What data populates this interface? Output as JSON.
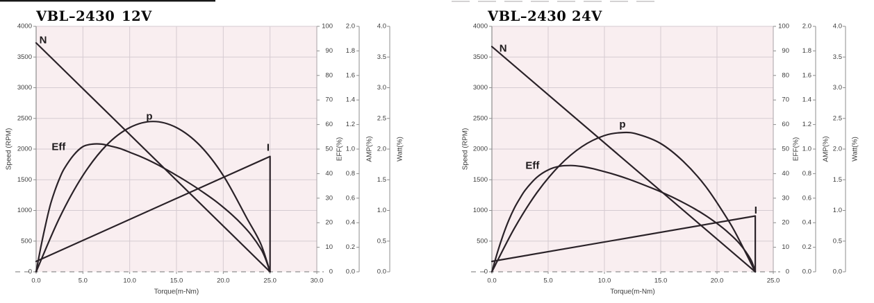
{
  "colors": {
    "plot_bg": "#f9eef0",
    "grid": "#d5cbd1",
    "axis_line": "#8c8c8c",
    "plot_right_border": "#a9a2a6",
    "dashed_zero": "#8f8f8f",
    "curve": "#2a2228",
    "tick_text": "#3c3c3c",
    "title_text": "#0a0a0a",
    "curve_label_text": "#1e1a1c",
    "artifact_black": "#181818",
    "artifact_gray": "#a8a4a6"
  },
  "chart_data": [
    {
      "type": "line",
      "title": {
        "model": "VBL–2430",
        "voltage": "12V"
      },
      "x_axis": {
        "title": "Torque(m-Nm)",
        "min": 0,
        "max": 30,
        "ticks": [
          0,
          5,
          10,
          15,
          20,
          25,
          30
        ],
        "tick_labels": [
          "0.0",
          "5.0",
          "10.0",
          "15.0",
          "20.0",
          "25.0",
          "30.0"
        ]
      },
      "speed_axis": {
        "title": "Speed (RPM)",
        "min": 0,
        "max": 4000,
        "ticks": [
          0,
          500,
          1000,
          1500,
          2000,
          2500,
          3000,
          3500,
          4000
        ],
        "tick_labels": [
          "0",
          "500",
          "1000",
          "1500",
          "2000",
          "2500",
          "3000",
          "3500",
          "4000"
        ]
      },
      "right_axes": [
        {
          "id": "eff",
          "title": "EFF(%)",
          "min": 0,
          "max": 100,
          "ticks": [
            0,
            10,
            20,
            30,
            40,
            50,
            60,
            70,
            80,
            90,
            100
          ],
          "tick_labels": [
            "0",
            "10",
            "20",
            "30",
            "40",
            "50",
            "60",
            "70",
            "80",
            "90",
            "100"
          ]
        },
        {
          "id": "amp",
          "title": "AMP(%)",
          "min": 0,
          "max": 2,
          "ticks": [
            0,
            0.2,
            0.4,
            0.6,
            0.8,
            1.0,
            1.2,
            1.4,
            1.6,
            1.8,
            2.0
          ],
          "tick_labels": [
            "0.0",
            "0.2",
            "0.4",
            "0.6",
            "0.8",
            "1.0",
            "1.2",
            "1.4",
            "1.6",
            "1.8",
            "2.0"
          ]
        },
        {
          "id": "watt",
          "title": "Watt(%)",
          "min": 0,
          "max": 4,
          "ticks": [
            0,
            0.5,
            1.0,
            1.5,
            2.0,
            2.5,
            3.0,
            3.5,
            4.0
          ],
          "tick_labels": [
            "0.0",
            "0.5",
            "1.0",
            "1.5",
            "2.0",
            "2.5",
            "3.0",
            "3.5",
            "4.0"
          ]
        }
      ],
      "no_load_speed_rpm": 3730,
      "stall_torque": 25,
      "series": [
        {
          "name": "speed",
          "label": "N",
          "axis": "speed",
          "smooth": false,
          "points": [
            [
              0,
              3730
            ],
            [
              25,
              0
            ]
          ],
          "label_at": [
            0.75,
            3775
          ]
        },
        {
          "name": "efficiency",
          "label": "Eff",
          "axis": "eff",
          "smooth": true,
          "points": [
            [
              0,
              0
            ],
            [
              0.5,
              10
            ],
            [
              1,
              19
            ],
            [
              1.5,
              27
            ],
            [
              2,
              33
            ],
            [
              2.5,
              38
            ],
            [
              3,
              42
            ],
            [
              4,
              47.5
            ],
            [
              5,
              51
            ],
            [
              6,
              52
            ],
            [
              7,
              52
            ],
            [
              8,
              51.2
            ],
            [
              9,
              50.2
            ],
            [
              10,
              48.7
            ],
            [
              11,
              47.2
            ],
            [
              12,
              45.5
            ],
            [
              13,
              43.6
            ],
            [
              14,
              41.5
            ],
            [
              15,
              39.3
            ],
            [
              16,
              37
            ],
            [
              17,
              34.6
            ],
            [
              18,
              32
            ],
            [
              19,
              29.3
            ],
            [
              20,
              26.3
            ],
            [
              21,
              23
            ],
            [
              22,
              19.3
            ],
            [
              23,
              15
            ],
            [
              24,
              9.5
            ],
            [
              24.5,
              5.5
            ],
            [
              25,
              0
            ]
          ],
          "label_at": [
            2.4,
            50.8
          ]
        },
        {
          "name": "power",
          "label": "p",
          "axis": "watt",
          "smooth": true,
          "points": [
            [
              0,
              0
            ],
            [
              2.5,
              0.88
            ],
            [
              5,
              1.57
            ],
            [
              7.5,
              2.06
            ],
            [
              10,
              2.35
            ],
            [
              12.5,
              2.45
            ],
            [
              15,
              2.35
            ],
            [
              17.5,
              2.06
            ],
            [
              20,
              1.57
            ],
            [
              22.5,
              0.88
            ],
            [
              24,
              0.46
            ],
            [
              25,
              0
            ]
          ],
          "label_at": [
            12.1,
            2.53
          ]
        },
        {
          "name": "current",
          "label": "I",
          "axis": "amp",
          "smooth": false,
          "points": [
            [
              0,
              0.085
            ],
            [
              25,
              0.94
            ],
            [
              25,
              0
            ]
          ],
          "label_at": [
            24.8,
            1.01
          ]
        }
      ]
    },
    {
      "type": "line",
      "title": {
        "model": "VBL–2430",
        "voltage": "24V"
      },
      "x_axis": {
        "title": "Torque(m-Nm)",
        "min": 0,
        "max": 25,
        "ticks": [
          0,
          5,
          10,
          15,
          20,
          25
        ],
        "tick_labels": [
          "0.0",
          "5.0",
          "10.0",
          "15.0",
          "20.0",
          "25.0"
        ]
      },
      "speed_axis": {
        "title": "Speed (RPM)",
        "min": 0,
        "max": 4000,
        "ticks": [
          0,
          500,
          1000,
          1500,
          2000,
          2500,
          3000,
          3500,
          4000
        ],
        "tick_labels": [
          "0",
          "500",
          "1000",
          "1500",
          "2000",
          "2500",
          "3000",
          "3500",
          "4000"
        ]
      },
      "right_axes": [
        {
          "id": "eff",
          "title": "EFF(%)",
          "min": 0,
          "max": 100,
          "ticks": [
            0,
            10,
            20,
            30,
            40,
            50,
            60,
            70,
            80,
            90,
            100
          ],
          "tick_labels": [
            "0",
            "10",
            "20",
            "30",
            "40",
            "50",
            "60",
            "70",
            "80",
            "90",
            "100"
          ]
        },
        {
          "id": "amp",
          "title": "AMP(%)",
          "min": 0,
          "max": 2,
          "ticks": [
            0,
            0.2,
            0.4,
            0.6,
            0.8,
            1.0,
            1.2,
            1.4,
            1.6,
            1.8,
            2.0
          ],
          "tick_labels": [
            "0.0",
            "0.2",
            "0.4",
            "0.6",
            "0.8",
            "1.0",
            "1.2",
            "1.4",
            "1.6",
            "1.8",
            "2.0"
          ]
        },
        {
          "id": "watt",
          "title": "Watt(%)",
          "min": 0,
          "max": 4,
          "ticks": [
            0,
            0.5,
            1.0,
            1.5,
            2.0,
            2.5,
            3.0,
            3.5,
            4.0
          ],
          "tick_labels": [
            "0.0",
            "0.5",
            "1.0",
            "1.5",
            "2.0",
            "2.5",
            "3.0",
            "3.5",
            "4.0"
          ]
        }
      ],
      "no_load_speed_rpm": 3670,
      "stall_torque": 23.4,
      "series": [
        {
          "name": "speed",
          "label": "N",
          "axis": "speed",
          "smooth": false,
          "points": [
            [
              0,
              3670
            ],
            [
              23.4,
              0
            ]
          ],
          "label_at": [
            1.0,
            3640
          ]
        },
        {
          "name": "efficiency",
          "label": "Eff",
          "axis": "eff",
          "smooth": true,
          "points": [
            [
              0,
              0
            ],
            [
              0.5,
              8
            ],
            [
              1,
              15
            ],
            [
              1.5,
              21
            ],
            [
              2,
              26
            ],
            [
              2.5,
              30
            ],
            [
              3,
              33.5
            ],
            [
              4,
              38.5
            ],
            [
              5,
              41.5
            ],
            [
              6,
              43
            ],
            [
              7,
              43.3
            ],
            [
              8,
              42.9
            ],
            [
              9,
              42
            ],
            [
              10,
              40.8
            ],
            [
              11,
              39.5
            ],
            [
              12,
              38
            ],
            [
              13,
              36.3
            ],
            [
              14,
              34.5
            ],
            [
              15,
              32.6
            ],
            [
              16,
              30.5
            ],
            [
              17,
              28.2
            ],
            [
              18,
              25.7
            ],
            [
              19,
              22.9
            ],
            [
              20,
              19.7
            ],
            [
              21,
              16
            ],
            [
              22,
              11.5
            ],
            [
              23,
              5
            ],
            [
              23.4,
              0
            ]
          ],
          "label_at": [
            3.6,
            43.2
          ]
        },
        {
          "name": "power",
          "label": "p",
          "axis": "watt",
          "smooth": true,
          "points": [
            [
              0,
              0
            ],
            [
              2,
              0.71
            ],
            [
              4,
              1.29
            ],
            [
              6,
              1.73
            ],
            [
              8,
              2.04
            ],
            [
              10,
              2.22
            ],
            [
              11.7,
              2.27
            ],
            [
              13,
              2.24
            ],
            [
              15,
              2.09
            ],
            [
              17,
              1.8
            ],
            [
              19,
              1.39
            ],
            [
              21,
              0.84
            ],
            [
              22,
              0.51
            ],
            [
              23.4,
              0
            ]
          ],
          "label_at": [
            11.6,
            2.4
          ]
        },
        {
          "name": "current",
          "label": "I",
          "axis": "amp",
          "smooth": false,
          "points": [
            [
              0,
              0.085
            ],
            [
              23.4,
              0.455
            ],
            [
              23.4,
              0
            ]
          ],
          "label_at": [
            23.45,
            0.5
          ]
        }
      ]
    }
  ]
}
